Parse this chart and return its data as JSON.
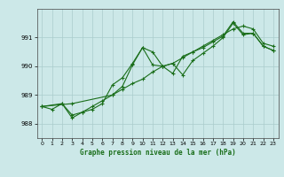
{
  "title": "Graphe pression niveau de la mer (hPa)",
  "bg_color": "#cce8e8",
  "grid_color": "#aacccc",
  "line_color": "#1a6e1a",
  "xlim": [
    -0.5,
    23.5
  ],
  "ylim": [
    987.5,
    992.0
  ],
  "yticks": [
    988,
    989,
    990,
    991
  ],
  "xticks": [
    0,
    1,
    2,
    3,
    4,
    5,
    6,
    7,
    8,
    9,
    10,
    11,
    12,
    13,
    14,
    15,
    16,
    17,
    18,
    19,
    20,
    21,
    22,
    23
  ],
  "series1_x": [
    0,
    1,
    2,
    3,
    4,
    5,
    6,
    7,
    8,
    9,
    10,
    11,
    12,
    13,
    14,
    15,
    16,
    17,
    18,
    19,
    20,
    21,
    22,
    23
  ],
  "series1_y": [
    988.6,
    988.5,
    988.7,
    988.3,
    988.4,
    988.6,
    988.8,
    989.0,
    989.2,
    989.4,
    989.55,
    989.8,
    990.0,
    990.1,
    990.3,
    990.5,
    990.7,
    990.9,
    991.1,
    991.3,
    991.4,
    991.3,
    990.8,
    990.7
  ],
  "series2_x": [
    0,
    2,
    3,
    4,
    5,
    6,
    7,
    8,
    9,
    10,
    11,
    12,
    13,
    14,
    15,
    16,
    17,
    18,
    19,
    20,
    21,
    22,
    23
  ],
  "series2_y": [
    988.6,
    988.7,
    988.2,
    988.4,
    988.5,
    988.7,
    989.35,
    989.6,
    990.1,
    990.65,
    990.05,
    990.0,
    990.1,
    989.7,
    990.2,
    990.45,
    990.7,
    991.0,
    991.5,
    991.1,
    991.15,
    990.7,
    990.55
  ],
  "series3_x": [
    0,
    3,
    7,
    8,
    9,
    10,
    11,
    12,
    13,
    14,
    15,
    16,
    17,
    18,
    19,
    20,
    21,
    22,
    23
  ],
  "series3_y": [
    988.6,
    988.7,
    989.0,
    989.3,
    990.05,
    990.65,
    990.5,
    990.0,
    989.75,
    990.35,
    990.5,
    990.65,
    990.85,
    991.05,
    991.55,
    991.15,
    991.15,
    990.7,
    990.55
  ]
}
